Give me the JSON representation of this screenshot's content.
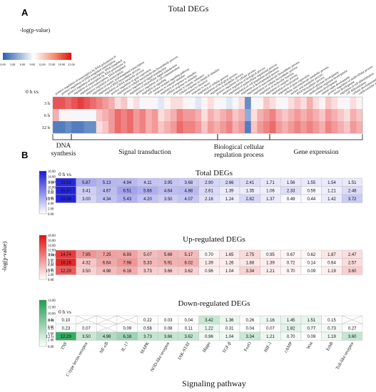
{
  "panel_a": {
    "letter": "A",
    "title": "Total DEGs",
    "legend_label": "-log(p-value)",
    "legend_ticks": [
      "0.00",
      "3.00",
      "6.00",
      "9.00",
      "12.00",
      "15.00",
      "18.00",
      "21.00"
    ],
    "row_header": "0 h vs",
    "rows": [
      "3 h",
      "6 h",
      "12 h"
    ],
    "term_labels": [
      "positive regulation of transcription by RNA polymerase II",
      "positive regulation of DNA-templated transcription",
      "positive regulation of transcription, DNA-templated",
      "regulation of transcription by RNA polymerase II",
      "regulation of transcription, DNA-templated",
      "negative regulation of transcription",
      "regulation of nucleic acid-templated transcription",
      "regulation of RNA biosynthetic process",
      "regulation of RNA metabolic process",
      "positive regulation of gene expression",
      "regulation of cellular macromolecule biosynthetic process",
      "positive regulation of signal transduction",
      "regulation of intracellular signal transduction",
      "positive regulation of cell communication",
      "regulation of signaling",
      "cell surface receptor signaling pathway",
      "response to external stimulus",
      "regulation of response to stimulus",
      "cellular response to stimulus",
      "response to organic substance",
      "cellular response to chemical stimulus",
      "response to chemical",
      "response to stress",
      "regulation of cellular process",
      "regulation of biological process",
      "regulation of metabolic process",
      "positive regulation of cellular process",
      "negative regulation of biological process",
      "regulation of multicellular organismal process",
      "regulation of cell population proliferation",
      "regulation of developmental process",
      "regulation of macromolecule biosynthetic process",
      "regulation of cellular biosynthetic process",
      "regulation of molecular function",
      "regulation of catalytic activity",
      "regulation of localization",
      "regulation of gene expression",
      "cellular macromolecule metabolic process",
      "nucleic acid metabolic process",
      "RNA biosynthetic process",
      "anatomical structure development",
      "multicellular organism development",
      "system development",
      "animal organ development",
      "positive regulation of multicellular process",
      "tissue development",
      "regulation of cell differentiation",
      "cell differentiation",
      "cellular developmental process",
      "cardiovascular system development"
    ],
    "groups": [
      "DNA synthesis",
      "Signal transduction",
      "Biological cellular regulation process",
      "Gene expression"
    ]
  },
  "panel_b": {
    "letter": "B",
    "y_label": "-log(p-value)",
    "x_label": "Signaling pathway",
    "row_header": "0 h vs",
    "rows": [
      "3 h",
      "6 h",
      "12 h"
    ],
    "pathways": [
      "TNF",
      "C-type lectin receptor",
      "NF-κB",
      "IL-17",
      "MAPK",
      "NOD-like receptor",
      "JAK-STAT",
      "Hippo",
      "TGF-β",
      "FoxO",
      "HIF-1",
      "cAMP",
      "Wnt",
      "ErbB",
      "Toll-like receptor"
    ]
  },
  "chart_data": [
    {
      "type": "heatmap",
      "title": "Total DEGs",
      "rows": [
        "3 h",
        "6 h",
        "12 h"
      ],
      "colorbar": {
        "min": 0,
        "max": 21,
        "colors": [
          "#2b5fb0",
          "#ffffff",
          "#e01010"
        ]
      },
      "columns": 50,
      "values": [
        [
          18,
          18,
          17,
          18,
          19,
          18,
          17,
          16,
          15,
          14,
          12,
          13,
          11,
          12,
          10,
          11,
          10,
          9,
          11,
          12,
          12,
          11,
          10,
          9,
          11,
          12,
          11,
          10,
          9,
          10,
          12,
          3,
          10,
          11,
          13,
          12,
          11,
          10,
          12,
          13,
          12,
          14,
          12,
          11,
          13,
          12,
          11,
          10,
          12,
          11
        ],
        [
          14,
          11,
          11,
          10,
          10,
          10,
          10,
          13,
          14,
          15,
          17,
          16,
          17,
          15,
          16,
          14,
          15,
          12,
          13,
          14,
          16,
          15,
          15,
          14,
          12,
          14,
          13,
          14,
          15,
          13,
          14,
          5,
          12,
          14,
          15,
          16,
          14,
          13,
          14,
          15,
          14,
          15,
          14,
          13,
          15,
          14,
          13,
          12,
          14,
          13
        ],
        [
          2,
          2,
          3,
          2,
          2,
          3,
          3,
          12,
          13,
          15,
          17,
          16,
          17,
          15,
          16,
          14,
          15,
          13,
          14,
          15,
          17,
          16,
          16,
          15,
          13,
          15,
          14,
          15,
          16,
          14,
          15,
          2,
          13,
          15,
          16,
          17,
          15,
          14,
          15,
          16,
          15,
          16,
          15,
          14,
          16,
          15,
          14,
          13,
          15,
          14
        ]
      ]
    },
    {
      "type": "table",
      "title": "Total DEGs",
      "colorbar": {
        "min": 0,
        "max": 16,
        "ticks": [
          "16.00",
          "14.00",
          "12.00",
          "10.00",
          "8.00",
          "6.00",
          "4.00",
          "2.00",
          "0.00"
        ],
        "colors": [
          "#ffffff",
          "#1a1ad6"
        ]
      },
      "rows": [
        "3 h",
        "6 h",
        "12 h"
      ],
      "columns": [
        "TNF",
        "C-type lectin receptor",
        "NF-κB",
        "IL-17",
        "MAPK",
        "NOD-like receptor",
        "JAK-STAT",
        "Hippo",
        "TGF-β",
        "FoxO",
        "HIF-1",
        "cAMP",
        "Wnt",
        "ErbB",
        "Toll-like receptor"
      ],
      "values": [
        [
          15.02,
          5.87,
          5.13,
          4.94,
          4.11,
          3.95,
          3.68,
          2.9,
          2.66,
          2.41,
          1.71,
          1.56,
          1.55,
          1.54,
          1.51
        ],
        [
          15.37,
          3.41,
          4.67,
          6.51,
          5.66,
          4.64,
          4.88,
          2.61,
          1.39,
          1.35,
          1.06,
          2.33,
          0.59,
          1.21,
          2.48
        ],
        [
          15.39,
          3.0,
          4.34,
          5.43,
          4.2,
          3.5,
          4.07,
          2.16,
          1.24,
          2.82,
          1.37,
          0.49,
          0.44,
          1.42,
          3.72
        ]
      ]
    },
    {
      "type": "table",
      "title": "Up-regulated DEGs",
      "colorbar": {
        "min": 0,
        "max": 18,
        "ticks": [
          "18.00",
          "16.00",
          "14.00",
          "12.00",
          "10.00",
          "8.00",
          "6.00",
          "4.00",
          "2.00",
          "0.00"
        ],
        "colors": [
          "#ffffff",
          "#e01010"
        ]
      },
      "rows": [
        "3 h",
        "6 h",
        "12 h"
      ],
      "columns": [
        "TNF",
        "C-type lectin receptor",
        "NF-κB",
        "IL-17",
        "MAPK",
        "NOD-like receptor",
        "JAK-STAT",
        "Hippo",
        "TGF-β",
        "FoxO",
        "HIF-1",
        "cAMP",
        "Wnt",
        "ErbB",
        "Toll-like receptor"
      ],
      "values": [
        [
          14.74,
          7.95,
          7.25,
          6.93,
          5.07,
          5.68,
          5.17,
          0.7,
          1.65,
          2.75,
          0.95,
          0.67,
          0.62,
          1.87,
          2.47
        ],
        [
          16.16,
          4.32,
          6.64,
          7.98,
          5.33,
          5.91,
          6.02,
          1.39,
          1.26,
          1.88,
          1.39,
          0.72,
          0.14,
          0.64,
          2.57
        ],
        [
          12.29,
          3.5,
          4.98,
          6.16,
          3.73,
          3.66,
          3.62,
          0.96,
          1.04,
          3.34,
          1.21,
          0.7,
          0.09,
          1.19,
          3.6
        ]
      ]
    },
    {
      "type": "table",
      "title": "Down-regulated DEGs",
      "colorbar": {
        "min": 0,
        "max": 14,
        "ticks": [
          "14.00",
          "12.00",
          "10.00",
          "8.00",
          "6.00",
          "4.00",
          "2.00",
          "0.00"
        ],
        "colors": [
          "#ffffff",
          "#1e9e50"
        ]
      },
      "rows": [
        "3 h",
        "6 h",
        "12 h"
      ],
      "columns": [
        "TNF",
        "C-type lectin receptor",
        "NF-κB",
        "IL-17",
        "MAPK",
        "NOD-like receptor",
        "JAK-STAT",
        "Hippo",
        "TGF-β",
        "FoxO",
        "HIF-1",
        "cAMP",
        "Wnt",
        "ErbB",
        "Toll-like receptor"
      ],
      "values": [
        [
          0.1,
          null,
          null,
          null,
          0.22,
          0.03,
          0.04,
          3.42,
          1.36,
          0.26,
          1.16,
          1.45,
          1.51,
          0.15,
          null
        ],
        [
          0.23,
          0.07,
          null,
          0.09,
          0.58,
          0.08,
          0.11,
          1.22,
          0.31,
          0.04,
          0.07,
          1.82,
          0.77,
          0.73,
          0.27
        ],
        [
          12.29,
          3.5,
          4.98,
          6.18,
          3.73,
          3.66,
          3.62,
          0.96,
          1.04,
          3.34,
          1.21,
          0.7,
          0.09,
          1.19,
          3.6
        ]
      ]
    }
  ]
}
